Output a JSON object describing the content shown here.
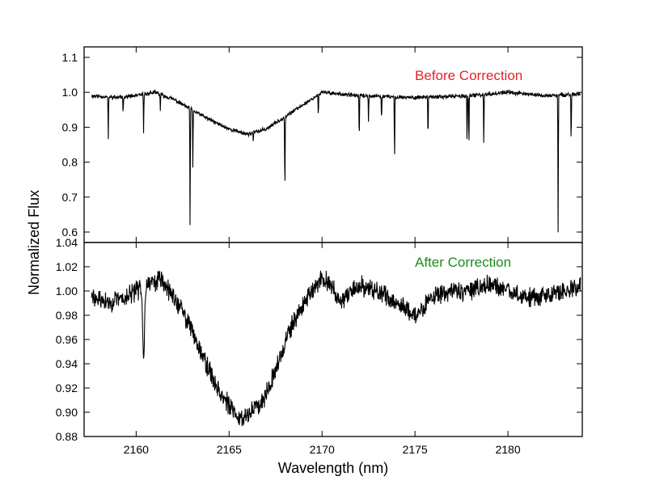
{
  "chart_data": [
    {
      "type": "line",
      "panel": "top",
      "annotation": "Before Correction",
      "annotation_color": "#e8212a",
      "line_color": "#000000",
      "xlabel": "",
      "ylabel": "",
      "xlim": [
        2157.2,
        2184.0
      ],
      "ylim": [
        0.57,
        1.13
      ],
      "yticks": [
        0.6,
        0.7,
        0.8,
        0.9,
        1.0,
        1.1
      ],
      "ytick_labels": [
        "0.6",
        "0.7",
        "0.8",
        "0.9",
        "1.0",
        "1.1"
      ],
      "grid": false,
      "continuum_points": [
        [
          2157.6,
          0.99
        ],
        [
          2159.0,
          0.985
        ],
        [
          2160.0,
          0.99
        ],
        [
          2161.0,
          1.0
        ],
        [
          2162.0,
          0.98
        ],
        [
          2163.0,
          0.95
        ],
        [
          2164.0,
          0.92
        ],
        [
          2165.0,
          0.895
        ],
        [
          2166.0,
          0.88
        ],
        [
          2167.0,
          0.895
        ],
        [
          2168.0,
          0.93
        ],
        [
          2169.0,
          0.965
        ],
        [
          2170.0,
          1.0
        ],
        [
          2172.0,
          0.99
        ],
        [
          2175.0,
          0.985
        ],
        [
          2178.0,
          0.99
        ],
        [
          2180.0,
          1.0
        ],
        [
          2182.0,
          0.99
        ],
        [
          2183.9,
          0.995
        ]
      ],
      "absorption_lines": [
        {
          "x": 2158.5,
          "min": 0.86
        },
        {
          "x": 2159.3,
          "min": 0.94
        },
        {
          "x": 2160.4,
          "min": 0.88
        },
        {
          "x": 2161.3,
          "min": 0.95
        },
        {
          "x": 2162.9,
          "min": 0.61
        },
        {
          "x": 2163.05,
          "min": 0.78
        },
        {
          "x": 2166.3,
          "min": 0.86
        },
        {
          "x": 2168.0,
          "min": 0.71
        },
        {
          "x": 2169.8,
          "min": 0.93
        },
        {
          "x": 2172.0,
          "min": 0.86
        },
        {
          "x": 2172.5,
          "min": 0.92
        },
        {
          "x": 2173.2,
          "min": 0.92
        },
        {
          "x": 2173.9,
          "min": 0.8
        },
        {
          "x": 2175.7,
          "min": 0.86
        },
        {
          "x": 2177.8,
          "min": 0.85
        },
        {
          "x": 2177.9,
          "min": 0.83
        },
        {
          "x": 2178.7,
          "min": 0.85
        },
        {
          "x": 2182.7,
          "min": 0.59
        },
        {
          "x": 2183.4,
          "min": 0.85
        }
      ]
    },
    {
      "type": "line",
      "panel": "bottom",
      "annotation": "After Correction",
      "annotation_color": "#1a8c1a",
      "line_color": "#000000",
      "xlabel": "Wavelength (nm)",
      "ylabel": "",
      "xlim": [
        2157.2,
        2184.0
      ],
      "ylim": [
        0.88,
        1.04
      ],
      "xticks": [
        2160,
        2165,
        2170,
        2175,
        2180
      ],
      "xtick_labels": [
        "2160",
        "2165",
        "2170",
        "2175",
        "2180"
      ],
      "yticks": [
        0.88,
        0.9,
        0.92,
        0.94,
        0.96,
        0.98,
        1.0,
        1.02,
        1.04
      ],
      "ytick_labels": [
        "0.88",
        "0.90",
        "0.92",
        "0.94",
        "0.96",
        "0.98",
        "1.00",
        "1.02",
        "1.04"
      ],
      "grid": false,
      "continuum_points": [
        [
          2157.6,
          0.995
        ],
        [
          2158.5,
          0.99
        ],
        [
          2159.5,
          0.995
        ],
        [
          2160.5,
          1.005
        ],
        [
          2161.3,
          1.01
        ],
        [
          2162.0,
          0.995
        ],
        [
          2162.8,
          0.975
        ],
        [
          2163.5,
          0.95
        ],
        [
          2164.2,
          0.925
        ],
        [
          2165.0,
          0.905
        ],
        [
          2165.5,
          0.895
        ],
        [
          2166.0,
          0.898
        ],
        [
          2166.8,
          0.91
        ],
        [
          2167.5,
          0.935
        ],
        [
          2168.2,
          0.965
        ],
        [
          2169.0,
          0.99
        ],
        [
          2170.0,
          1.01
        ],
        [
          2170.5,
          1.005
        ],
        [
          2171.0,
          0.99
        ],
        [
          2172.0,
          1.005
        ],
        [
          2173.0,
          1.0
        ],
        [
          2174.0,
          0.99
        ],
        [
          2175.0,
          0.98
        ],
        [
          2176.0,
          0.995
        ],
        [
          2177.0,
          1.0
        ],
        [
          2178.0,
          1.0
        ],
        [
          2179.0,
          1.005
        ],
        [
          2180.0,
          1.0
        ],
        [
          2181.0,
          0.995
        ],
        [
          2182.0,
          0.995
        ],
        [
          2183.0,
          1.0
        ],
        [
          2183.9,
          1.005
        ]
      ],
      "absorption_lines": [
        {
          "x": 2160.4,
          "min": 0.945
        }
      ]
    }
  ],
  "shared": {
    "ylabel": "Normalized Flux",
    "xlabel": "Wavelength (nm)"
  }
}
